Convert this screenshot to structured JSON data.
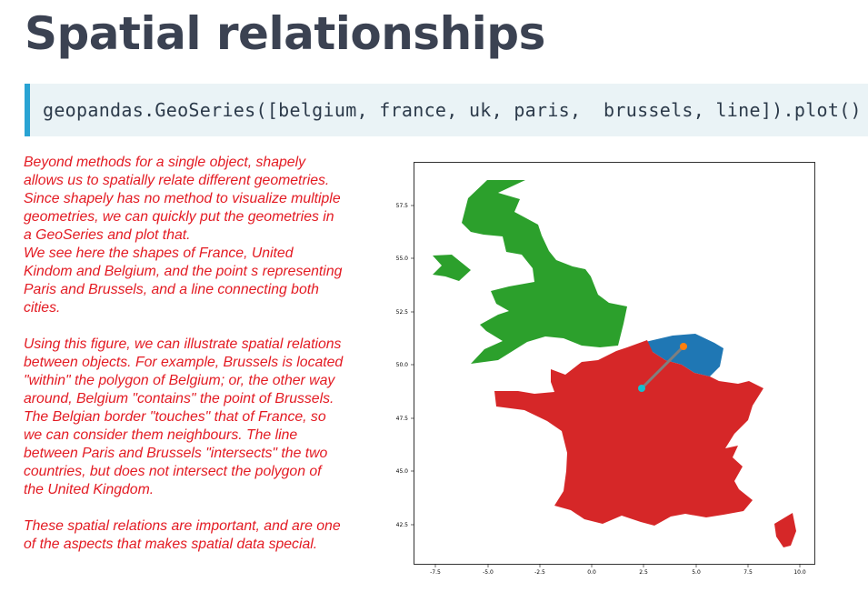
{
  "slide": {
    "title": "Spatial relationships",
    "code": "geopandas.GeoSeries([belgium, france, uk, paris,  brussels, line]).plot()"
  },
  "notes": {
    "p1_lines": [
      "Beyond methods for a single object, shapely",
      "allows us to spatially relate different geometries.",
      "Since shapely has no method to visualize multiple",
      "geometries, we can quickly put the geometries in",
      "a GeoSeries and plot that."
    ],
    "p2_lines": [
      "We see here the shapes of France, United",
      "Kindom and Belgium, and the point s representing",
      "Paris and Brussels, and a line connecting both",
      "cities."
    ],
    "p3_lines": [
      "Using this figure, we can illustrate spatial relations",
      "between objects. For example, Brussels is located",
      "\"within\" the polygon of Belgium; or, the other way",
      "around, Belgium \"contains\" the point of Brussels.",
      "The Belgian border \"touches\" that of France, so",
      "we can consider them neighbours. The line",
      "between Paris and Brussels \"intersects\" the two",
      "countries, but does not intersect the polygon of",
      "the United Kingdom."
    ],
    "p4_lines": [
      "These spatial relations are important, and are one",
      "of the aspects that makes spatial data special."
    ]
  },
  "chart_data": {
    "type": "map",
    "series": [
      {
        "name": "belgium",
        "geometry": "polygon",
        "color": "#1f77b4"
      },
      {
        "name": "france",
        "geometry": "polygon",
        "color": "#d62728"
      },
      {
        "name": "uk",
        "geometry": "polygon",
        "color": "#2ca02c"
      },
      {
        "name": "paris",
        "geometry": "point",
        "x": 2.35,
        "y": 48.86,
        "color": "#17becf"
      },
      {
        "name": "brussels",
        "geometry": "point",
        "x": 4.35,
        "y": 50.85,
        "color": "#ff7f0e"
      },
      {
        "name": "line",
        "geometry": "linestring",
        "from": "paris",
        "to": "brussels",
        "color": "#7f7f7f"
      }
    ],
    "y_ticks": [
      "57.5",
      "55.0",
      "52.5",
      "50.0",
      "47.5",
      "45.0",
      "42.5"
    ],
    "x_ticks": [
      "-7.5",
      "-5.0",
      "-2.5",
      "0.0",
      "2.5",
      "5.0",
      "7.5",
      "10.0"
    ],
    "xlim": [
      -8.6,
      10.0
    ],
    "ylim": [
      41.2,
      59.3
    ]
  }
}
